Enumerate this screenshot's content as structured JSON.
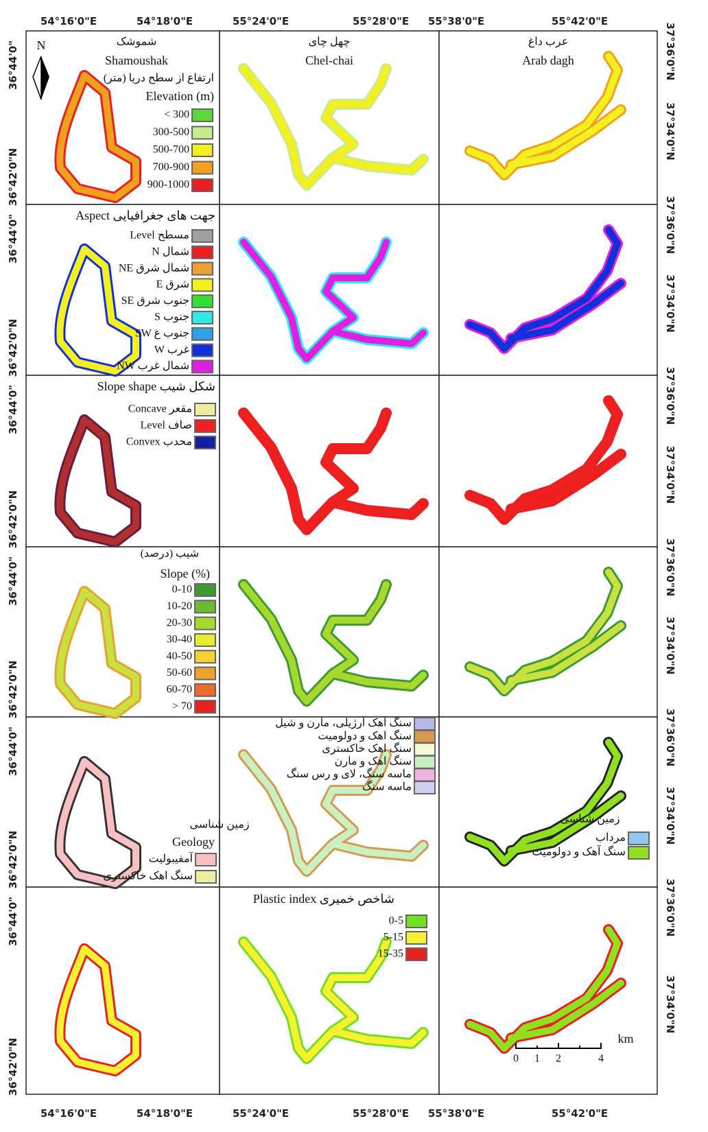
{
  "top_axis": [
    "54°16'0\"E",
    "54°18'0\"E",
    "55°24'0\"E",
    "55°28'0\"E",
    "55°38'0\"E",
    "55°42'0\"E"
  ],
  "bottom_axis": [
    "54°16'0\"E",
    "54°18'0\"E",
    "55°24'0\"E",
    "55°28'0\"E",
    "55°38'0\"E",
    "55°42'0\"E"
  ],
  "left_axis": [
    "36°44'0\"",
    "36°42'0\"N"
  ],
  "right_axis": [
    "37°36'0\"N",
    "37°34'0\"N"
  ],
  "north": "N",
  "sites": [
    {
      "fa": "شموشک",
      "en": "Shamoushak"
    },
    {
      "fa": "چهل چای",
      "en": "Chel-chai"
    },
    {
      "fa": "عرب داغ",
      "en": "Arab dagh"
    }
  ],
  "elevation": {
    "title_fa": "ارتفاع از سطح دریا (متر)",
    "title_en": "Elevation (m)",
    "legend": [
      {
        "label": "< 300",
        "color": "#5fd63a"
      },
      {
        "label": "300-500",
        "color": "#c8ec8c"
      },
      {
        "label": "500-700",
        "color": "#f4f020"
      },
      {
        "label": "700-900",
        "color": "#f2a020"
      },
      {
        "label": "900-1000",
        "color": "#e82020"
      }
    ]
  },
  "aspect": {
    "title": "Aspect جهت های جغرافیایی",
    "legend": [
      {
        "label": "Level مسطح",
        "color": "#a0a0a0"
      },
      {
        "label": "N شمال",
        "color": "#e82020"
      },
      {
        "label": "NE شمال شرق",
        "color": "#f0a030"
      },
      {
        "label": "E شرق",
        "color": "#f4f020"
      },
      {
        "label": "SE جنوب شرق",
        "color": "#30e030"
      },
      {
        "label": "S جنوب",
        "color": "#30e8e8"
      },
      {
        "label": "SW جنوب غ",
        "color": "#30a0e8"
      },
      {
        "label": "W غرب",
        "color": "#1030d8"
      },
      {
        "label": "NW شمال غرب",
        "color": "#e020e0"
      }
    ]
  },
  "slope_shape": {
    "title": "Slope shape شکل شیب",
    "legend": [
      {
        "label": "Concave مقعر",
        "color": "#f0eca0"
      },
      {
        "label": "Level صاف",
        "color": "#f02020"
      },
      {
        "label": "Convex محدب",
        "color": "#1020a0"
      }
    ]
  },
  "slope": {
    "title_fa": "شیب (درصد)",
    "title_en": "Slope (%)",
    "legend": [
      {
        "label": "0-10",
        "color": "#3c9a30"
      },
      {
        "label": "10-20",
        "color": "#6cbc30"
      },
      {
        "label": "20-30",
        "color": "#a8d830"
      },
      {
        "label": "30-40",
        "color": "#e8ec30"
      },
      {
        "label": "40-50",
        "color": "#f4d030"
      },
      {
        "label": "50-60",
        "color": "#f0a030"
      },
      {
        "label": "60-70",
        "color": "#f06a30"
      },
      {
        "label": "> 70",
        "color": "#e82020"
      }
    ]
  },
  "geology": {
    "title_fa": "زمین شناسی",
    "title_en": "Geology",
    "legend1": [
      {
        "label": "آمفیبولیت",
        "color": "#f8c0c0"
      },
      {
        "label": "سنگ اهک خاکستری",
        "color": "#f0eca0"
      }
    ],
    "legend2": [
      {
        "label": "سنگ آهک آرژیلی، مارن و شیل",
        "color": "#b8b8e8"
      },
      {
        "label": "سنگ اهک و دولومیت",
        "color": "#d89850"
      },
      {
        "label": "سنگ اهک خاکستری",
        "color": "#f8f8d8"
      },
      {
        "label": "سنگ اهک و مارن",
        "color": "#c8f0c0"
      },
      {
        "label": "ماسه سنگ، لای و رس سنگ",
        "color": "#f0b0e0"
      },
      {
        "label": "ماسه سنگ",
        "color": "#d0d0f0"
      }
    ],
    "legend3": [
      {
        "label": "مرداب",
        "color": "#90c8f0"
      },
      {
        "label": "سنگ آهک و دولومیت",
        "color": "#90e020"
      }
    ]
  },
  "plastic": {
    "title": "Plastic index شاخص خمیری",
    "legend": [
      {
        "label": "0-5",
        "color": "#70e020"
      },
      {
        "label": "5-15",
        "color": "#f8f030"
      },
      {
        "label": "15-35",
        "color": "#e82020"
      }
    ]
  },
  "scale_bar": {
    "ticks": [
      "0",
      "1",
      "2",
      "4"
    ],
    "unit": "km"
  }
}
